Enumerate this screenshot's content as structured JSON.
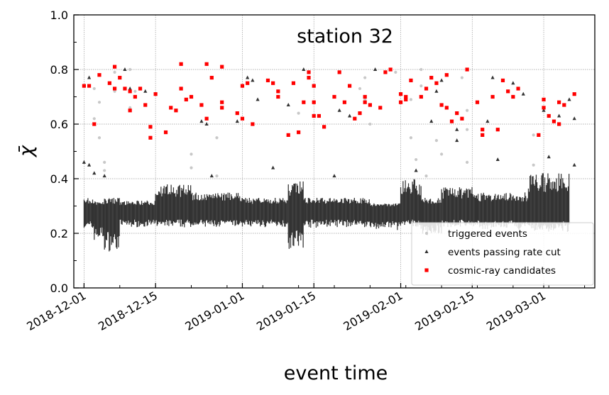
{
  "chart_data": {
    "type": "scatter",
    "title": "station 32",
    "xlabel": "event time",
    "ylabel": "χ̄",
    "ylim": [
      0.0,
      1.0
    ],
    "xlim": [
      "2018-11-29",
      "2019-03-11"
    ],
    "yticks": [
      "0.0",
      "0.2",
      "0.4",
      "0.6",
      "0.8",
      "1.0"
    ],
    "xticks": [
      "2018-12-01",
      "2018-12-15",
      "2019-01-01",
      "2019-01-15",
      "2019-02-01",
      "2019-02-15",
      "2019-03-01"
    ],
    "grid": true,
    "legend": "lower-right",
    "series": [
      {
        "name": "triggered events",
        "color": "#c8c8c8",
        "marker": "circle",
        "points": [
          [
            "2018-12-03",
            0.73
          ],
          [
            "2018-12-03",
            0.62
          ],
          [
            "2018-12-04",
            0.68
          ],
          [
            "2018-12-04",
            0.55
          ],
          [
            "2018-12-05",
            0.46
          ],
          [
            "2018-12-05",
            0.43
          ],
          [
            "2018-12-07",
            0.79
          ],
          [
            "2018-12-07",
            0.72
          ],
          [
            "2018-12-10",
            0.8
          ],
          [
            "2018-12-10",
            0.66
          ],
          [
            "2018-12-11",
            0.72
          ],
          [
            "2018-12-22",
            0.49
          ],
          [
            "2018-12-22",
            0.44
          ],
          [
            "2018-12-27",
            0.55
          ],
          [
            "2018-12-27",
            0.41
          ],
          [
            "2019-01-12",
            0.64
          ],
          [
            "2019-01-24",
            0.73
          ],
          [
            "2019-01-25",
            0.77
          ],
          [
            "2019-01-25",
            0.69
          ],
          [
            "2019-01-26",
            0.6
          ],
          [
            "2019-01-31",
            0.79
          ],
          [
            "2019-02-03",
            0.69
          ],
          [
            "2019-02-03",
            0.55
          ],
          [
            "2019-02-04",
            0.47
          ],
          [
            "2019-02-05",
            0.74
          ],
          [
            "2019-02-05",
            0.8
          ],
          [
            "2019-02-06",
            0.41
          ],
          [
            "2019-02-08",
            0.54
          ],
          [
            "2019-02-09",
            0.49
          ],
          [
            "2019-02-13",
            0.77
          ],
          [
            "2019-02-14",
            0.65
          ],
          [
            "2019-02-14",
            0.58
          ],
          [
            "2019-02-14",
            0.46
          ],
          [
            "2019-02-27",
            0.56
          ],
          [
            "2019-02-27",
            0.45
          ],
          [
            "2019-03-03",
            0.61
          ]
        ]
      },
      {
        "name": "events passing rate cut",
        "color": "#333333",
        "marker": "triangle",
        "points": [
          [
            "2018-12-01",
            0.46
          ],
          [
            "2018-12-02",
            0.77
          ],
          [
            "2018-12-02",
            0.45
          ],
          [
            "2018-12-03",
            0.42
          ],
          [
            "2018-12-05",
            0.41
          ],
          [
            "2018-12-09",
            0.8
          ],
          [
            "2018-12-10",
            0.73
          ],
          [
            "2018-12-13",
            0.72
          ],
          [
            "2018-12-24",
            0.61
          ],
          [
            "2018-12-25",
            0.6
          ],
          [
            "2018-12-26",
            0.41
          ],
          [
            "2018-12-31",
            0.61
          ],
          [
            "2019-01-02",
            0.77
          ],
          [
            "2019-01-03",
            0.76
          ],
          [
            "2019-01-04",
            0.69
          ],
          [
            "2019-01-07",
            0.44
          ],
          [
            "2019-01-10",
            0.67
          ],
          [
            "2019-01-13",
            0.8
          ],
          [
            "2019-01-19",
            0.41
          ],
          [
            "2019-01-20",
            0.65
          ],
          [
            "2019-01-22",
            0.63
          ],
          [
            "2019-01-27",
            0.8
          ],
          [
            "2019-02-04",
            0.43
          ],
          [
            "2019-02-07",
            0.61
          ],
          [
            "2019-02-08",
            0.72
          ],
          [
            "2019-02-09",
            0.76
          ],
          [
            "2019-02-12",
            0.58
          ],
          [
            "2019-02-12",
            0.54
          ],
          [
            "2019-02-18",
            0.61
          ],
          [
            "2019-02-19",
            0.77
          ],
          [
            "2019-02-20",
            0.47
          ],
          [
            "2019-02-23",
            0.75
          ],
          [
            "2019-02-25",
            0.71
          ],
          [
            "2019-03-01",
            0.65
          ],
          [
            "2019-03-02",
            0.48
          ],
          [
            "2019-03-04",
            0.63
          ],
          [
            "2019-03-07",
            0.62
          ],
          [
            "2019-03-07",
            0.45
          ],
          [
            "2019-03-06",
            0.69
          ]
        ]
      },
      {
        "name": "cosmic-ray candidates",
        "color": "#ff0000",
        "marker": "square",
        "points": [
          [
            "2018-12-01",
            0.74
          ],
          [
            "2018-12-02",
            0.74
          ],
          [
            "2018-12-03",
            0.6
          ],
          [
            "2018-12-04",
            0.78
          ],
          [
            "2018-12-06",
            0.75
          ],
          [
            "2018-12-07",
            0.81
          ],
          [
            "2018-12-07",
            0.73
          ],
          [
            "2018-12-08",
            0.77
          ],
          [
            "2018-12-09",
            0.73
          ],
          [
            "2018-12-10",
            0.72
          ],
          [
            "2018-12-10",
            0.65
          ],
          [
            "2018-12-11",
            0.7
          ],
          [
            "2018-12-12",
            0.73
          ],
          [
            "2018-12-13",
            0.67
          ],
          [
            "2018-12-14",
            0.55
          ],
          [
            "2018-12-14",
            0.59
          ],
          [
            "2018-12-15",
            0.71
          ],
          [
            "2018-12-17",
            0.57
          ],
          [
            "2018-12-18",
            0.66
          ],
          [
            "2018-12-19",
            0.65
          ],
          [
            "2018-12-20",
            0.82
          ],
          [
            "2018-12-20",
            0.73
          ],
          [
            "2018-12-21",
            0.69
          ],
          [
            "2018-12-22",
            0.7
          ],
          [
            "2018-12-24",
            0.67
          ],
          [
            "2018-12-25",
            0.82
          ],
          [
            "2018-12-25",
            0.62
          ],
          [
            "2018-12-26",
            0.77
          ],
          [
            "2018-12-28",
            0.81
          ],
          [
            "2018-12-28",
            0.66
          ],
          [
            "2018-12-28",
            0.68
          ],
          [
            "2018-12-31",
            0.64
          ],
          [
            "2019-01-01",
            0.62
          ],
          [
            "2019-01-01",
            0.74
          ],
          [
            "2019-01-02",
            0.75
          ],
          [
            "2019-01-03",
            0.6
          ],
          [
            "2019-01-06",
            0.76
          ],
          [
            "2019-01-07",
            0.75
          ],
          [
            "2019-01-08",
            0.72
          ],
          [
            "2019-01-08",
            0.7
          ],
          [
            "2019-01-10",
            0.56
          ],
          [
            "2019-01-11",
            0.75
          ],
          [
            "2019-01-12",
            0.57
          ],
          [
            "2019-01-13",
            0.68
          ],
          [
            "2019-01-14",
            0.77
          ],
          [
            "2019-01-14",
            0.79
          ],
          [
            "2019-01-15",
            0.74
          ],
          [
            "2019-01-15",
            0.63
          ],
          [
            "2019-01-15",
            0.68
          ],
          [
            "2019-01-16",
            0.63
          ],
          [
            "2019-01-17",
            0.59
          ],
          [
            "2019-01-19",
            0.7
          ],
          [
            "2019-01-20",
            0.79
          ],
          [
            "2019-01-21",
            0.68
          ],
          [
            "2019-01-22",
            0.74
          ],
          [
            "2019-01-23",
            0.62
          ],
          [
            "2019-01-24",
            0.64
          ],
          [
            "2019-01-25",
            0.68
          ],
          [
            "2019-01-25",
            0.7
          ],
          [
            "2019-01-26",
            0.67
          ],
          [
            "2019-01-28",
            0.66
          ],
          [
            "2019-01-29",
            0.79
          ],
          [
            "2019-01-30",
            0.8
          ],
          [
            "2019-02-01",
            0.71
          ],
          [
            "2019-02-01",
            0.68
          ],
          [
            "2019-02-02",
            0.69
          ],
          [
            "2019-02-02",
            0.7
          ],
          [
            "2019-02-03",
            0.76
          ],
          [
            "2019-02-05",
            0.7
          ],
          [
            "2019-02-06",
            0.73
          ],
          [
            "2019-02-07",
            0.77
          ],
          [
            "2019-02-08",
            0.75
          ],
          [
            "2019-02-09",
            0.67
          ],
          [
            "2019-02-10",
            0.78
          ],
          [
            "2019-02-10",
            0.66
          ],
          [
            "2019-02-11",
            0.61
          ],
          [
            "2019-02-12",
            0.64
          ],
          [
            "2019-02-13",
            0.62
          ],
          [
            "2019-02-14",
            0.8
          ],
          [
            "2019-02-16",
            0.68
          ],
          [
            "2019-02-17",
            0.58
          ],
          [
            "2019-02-17",
            0.56
          ],
          [
            "2019-02-19",
            0.7
          ],
          [
            "2019-02-20",
            0.58
          ],
          [
            "2019-02-21",
            0.76
          ],
          [
            "2019-02-22",
            0.72
          ],
          [
            "2019-02-23",
            0.7
          ],
          [
            "2019-02-24",
            0.73
          ],
          [
            "2019-02-28",
            0.56
          ],
          [
            "2019-03-01",
            0.69
          ],
          [
            "2019-03-01",
            0.66
          ],
          [
            "2019-03-02",
            0.63
          ],
          [
            "2019-03-03",
            0.61
          ],
          [
            "2019-03-04",
            0.68
          ],
          [
            "2019-03-04",
            0.6
          ],
          [
            "2019-03-05",
            0.67
          ],
          [
            "2019-03-07",
            0.71
          ]
        ]
      }
    ],
    "band_series": [
      {
        "name": "events passing rate cut",
        "color": "#333333",
        "note_segments": [
          [
            "2018-12-01",
            "2018-12-03",
            0.21,
            0.33
          ],
          [
            "2018-12-03",
            "2018-12-05",
            0.17,
            0.32
          ],
          [
            "2018-12-05",
            "2018-12-08",
            0.13,
            0.33
          ],
          [
            "2018-12-08",
            "2018-12-15",
            0.22,
            0.32
          ],
          [
            "2018-12-15",
            "2018-12-22",
            0.22,
            0.38
          ],
          [
            "2018-12-22",
            "2019-01-01",
            0.22,
            0.35
          ],
          [
            "2019-01-01",
            "2019-01-10",
            0.22,
            0.33
          ],
          [
            "2019-01-10",
            "2019-01-13",
            0.14,
            0.39
          ],
          [
            "2019-01-13",
            "2019-01-26",
            0.22,
            0.33
          ],
          [
            "2019-01-26",
            "2019-02-01",
            0.21,
            0.31
          ],
          [
            "2019-02-01",
            "2019-02-05",
            0.22,
            0.4
          ],
          [
            "2019-02-05",
            "2019-02-09",
            0.19,
            0.33
          ],
          [
            "2019-02-09",
            "2019-02-16",
            0.22,
            0.37
          ],
          [
            "2019-02-16",
            "2019-02-26",
            0.21,
            0.35
          ],
          [
            "2019-02-26",
            "2019-03-06",
            0.2,
            0.42
          ]
        ]
      }
    ]
  }
}
